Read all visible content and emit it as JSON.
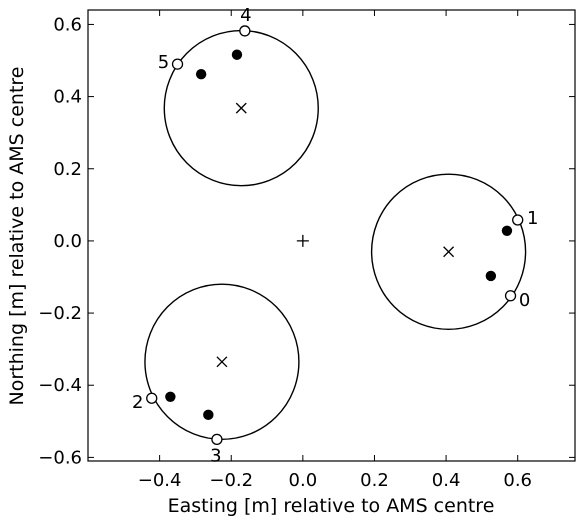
{
  "chart_data": {
    "type": "scatter",
    "title": "",
    "xlabel": "Easting [m] relative to AMS centre",
    "ylabel": "Northing [m] relative to AMS centre",
    "xlim": [
      -0.6,
      0.76
    ],
    "ylim": [
      -0.61,
      0.64
    ],
    "x_ticks": [
      -0.4,
      -0.2,
      0.0,
      0.2,
      0.4,
      0.6
    ],
    "x_tick_labels": [
      "−0.4",
      "−0.2",
      "0.0",
      "0.2",
      "0.4",
      "0.6"
    ],
    "y_ticks": [
      -0.6,
      -0.4,
      -0.2,
      0.0,
      0.2,
      0.4,
      0.6
    ],
    "y_tick_labels": [
      "−0.6",
      "−0.4",
      "−0.2",
      "0.0",
      "0.2",
      "0.4",
      "0.6"
    ],
    "grid": false,
    "legend": "none",
    "ams_centre": {
      "x": 0.0,
      "y": 0.0,
      "marker": "plus"
    },
    "circles": [
      {
        "center_x": 0.407,
        "center_y": -0.03,
        "radius": 0.215,
        "center_marker": "x"
      },
      {
        "center_x": -0.226,
        "center_y": -0.335,
        "radius": 0.215,
        "center_marker": "x"
      },
      {
        "center_x": -0.172,
        "center_y": 0.368,
        "radius": 0.215,
        "center_marker": "x"
      }
    ],
    "open_points": [
      {
        "label": "0",
        "x": 0.58,
        "y": -0.152
      },
      {
        "label": "1",
        "x": 0.6,
        "y": 0.058
      },
      {
        "label": "2",
        "x": -0.422,
        "y": -0.436
      },
      {
        "label": "3",
        "x": -0.24,
        "y": -0.55
      },
      {
        "label": "4",
        "x": -0.162,
        "y": 0.582
      },
      {
        "label": "5",
        "x": -0.35,
        "y": 0.49
      }
    ],
    "filled_points": [
      {
        "x": 0.57,
        "y": 0.028
      },
      {
        "x": 0.525,
        "y": -0.097
      },
      {
        "x": -0.37,
        "y": -0.432
      },
      {
        "x": -0.264,
        "y": -0.482
      },
      {
        "x": -0.184,
        "y": 0.516
      },
      {
        "x": -0.284,
        "y": 0.462
      }
    ]
  }
}
